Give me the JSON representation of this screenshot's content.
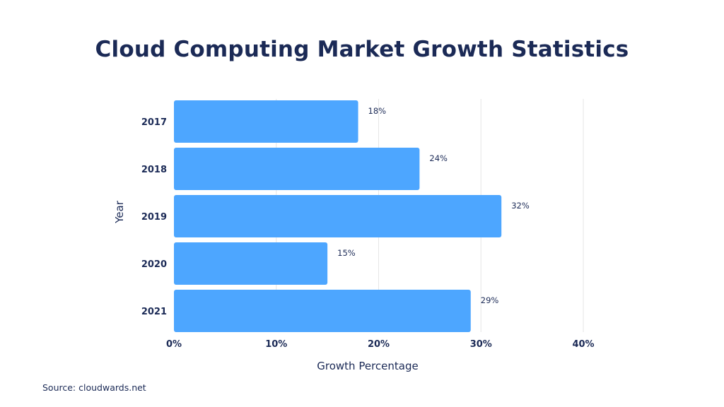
{
  "title": "Cloud Computing Market Growth Statistics",
  "source": "Source: cloudwards.net",
  "colors": {
    "bar": "#4da6ff",
    "text": "#1b2a56",
    "grid": "#e6e6e6"
  },
  "chart_data": {
    "type": "bar",
    "orientation": "horizontal",
    "title": "Cloud Computing Market Growth Statistics",
    "xlabel": "Growth Percentage",
    "ylabel": "Year",
    "categories": [
      "2017",
      "2018",
      "2019",
      "2020",
      "2021"
    ],
    "values": [
      18,
      24,
      32,
      15,
      29
    ],
    "data_labels": [
      "18%",
      "24%",
      "32%",
      "15%",
      "29%"
    ],
    "xlim": [
      0,
      40
    ],
    "x_ticks": [
      0,
      10,
      20,
      30,
      40
    ],
    "x_tick_labels": [
      "0%",
      "10%",
      "20%",
      "30%",
      "40%"
    ],
    "grid": true
  }
}
